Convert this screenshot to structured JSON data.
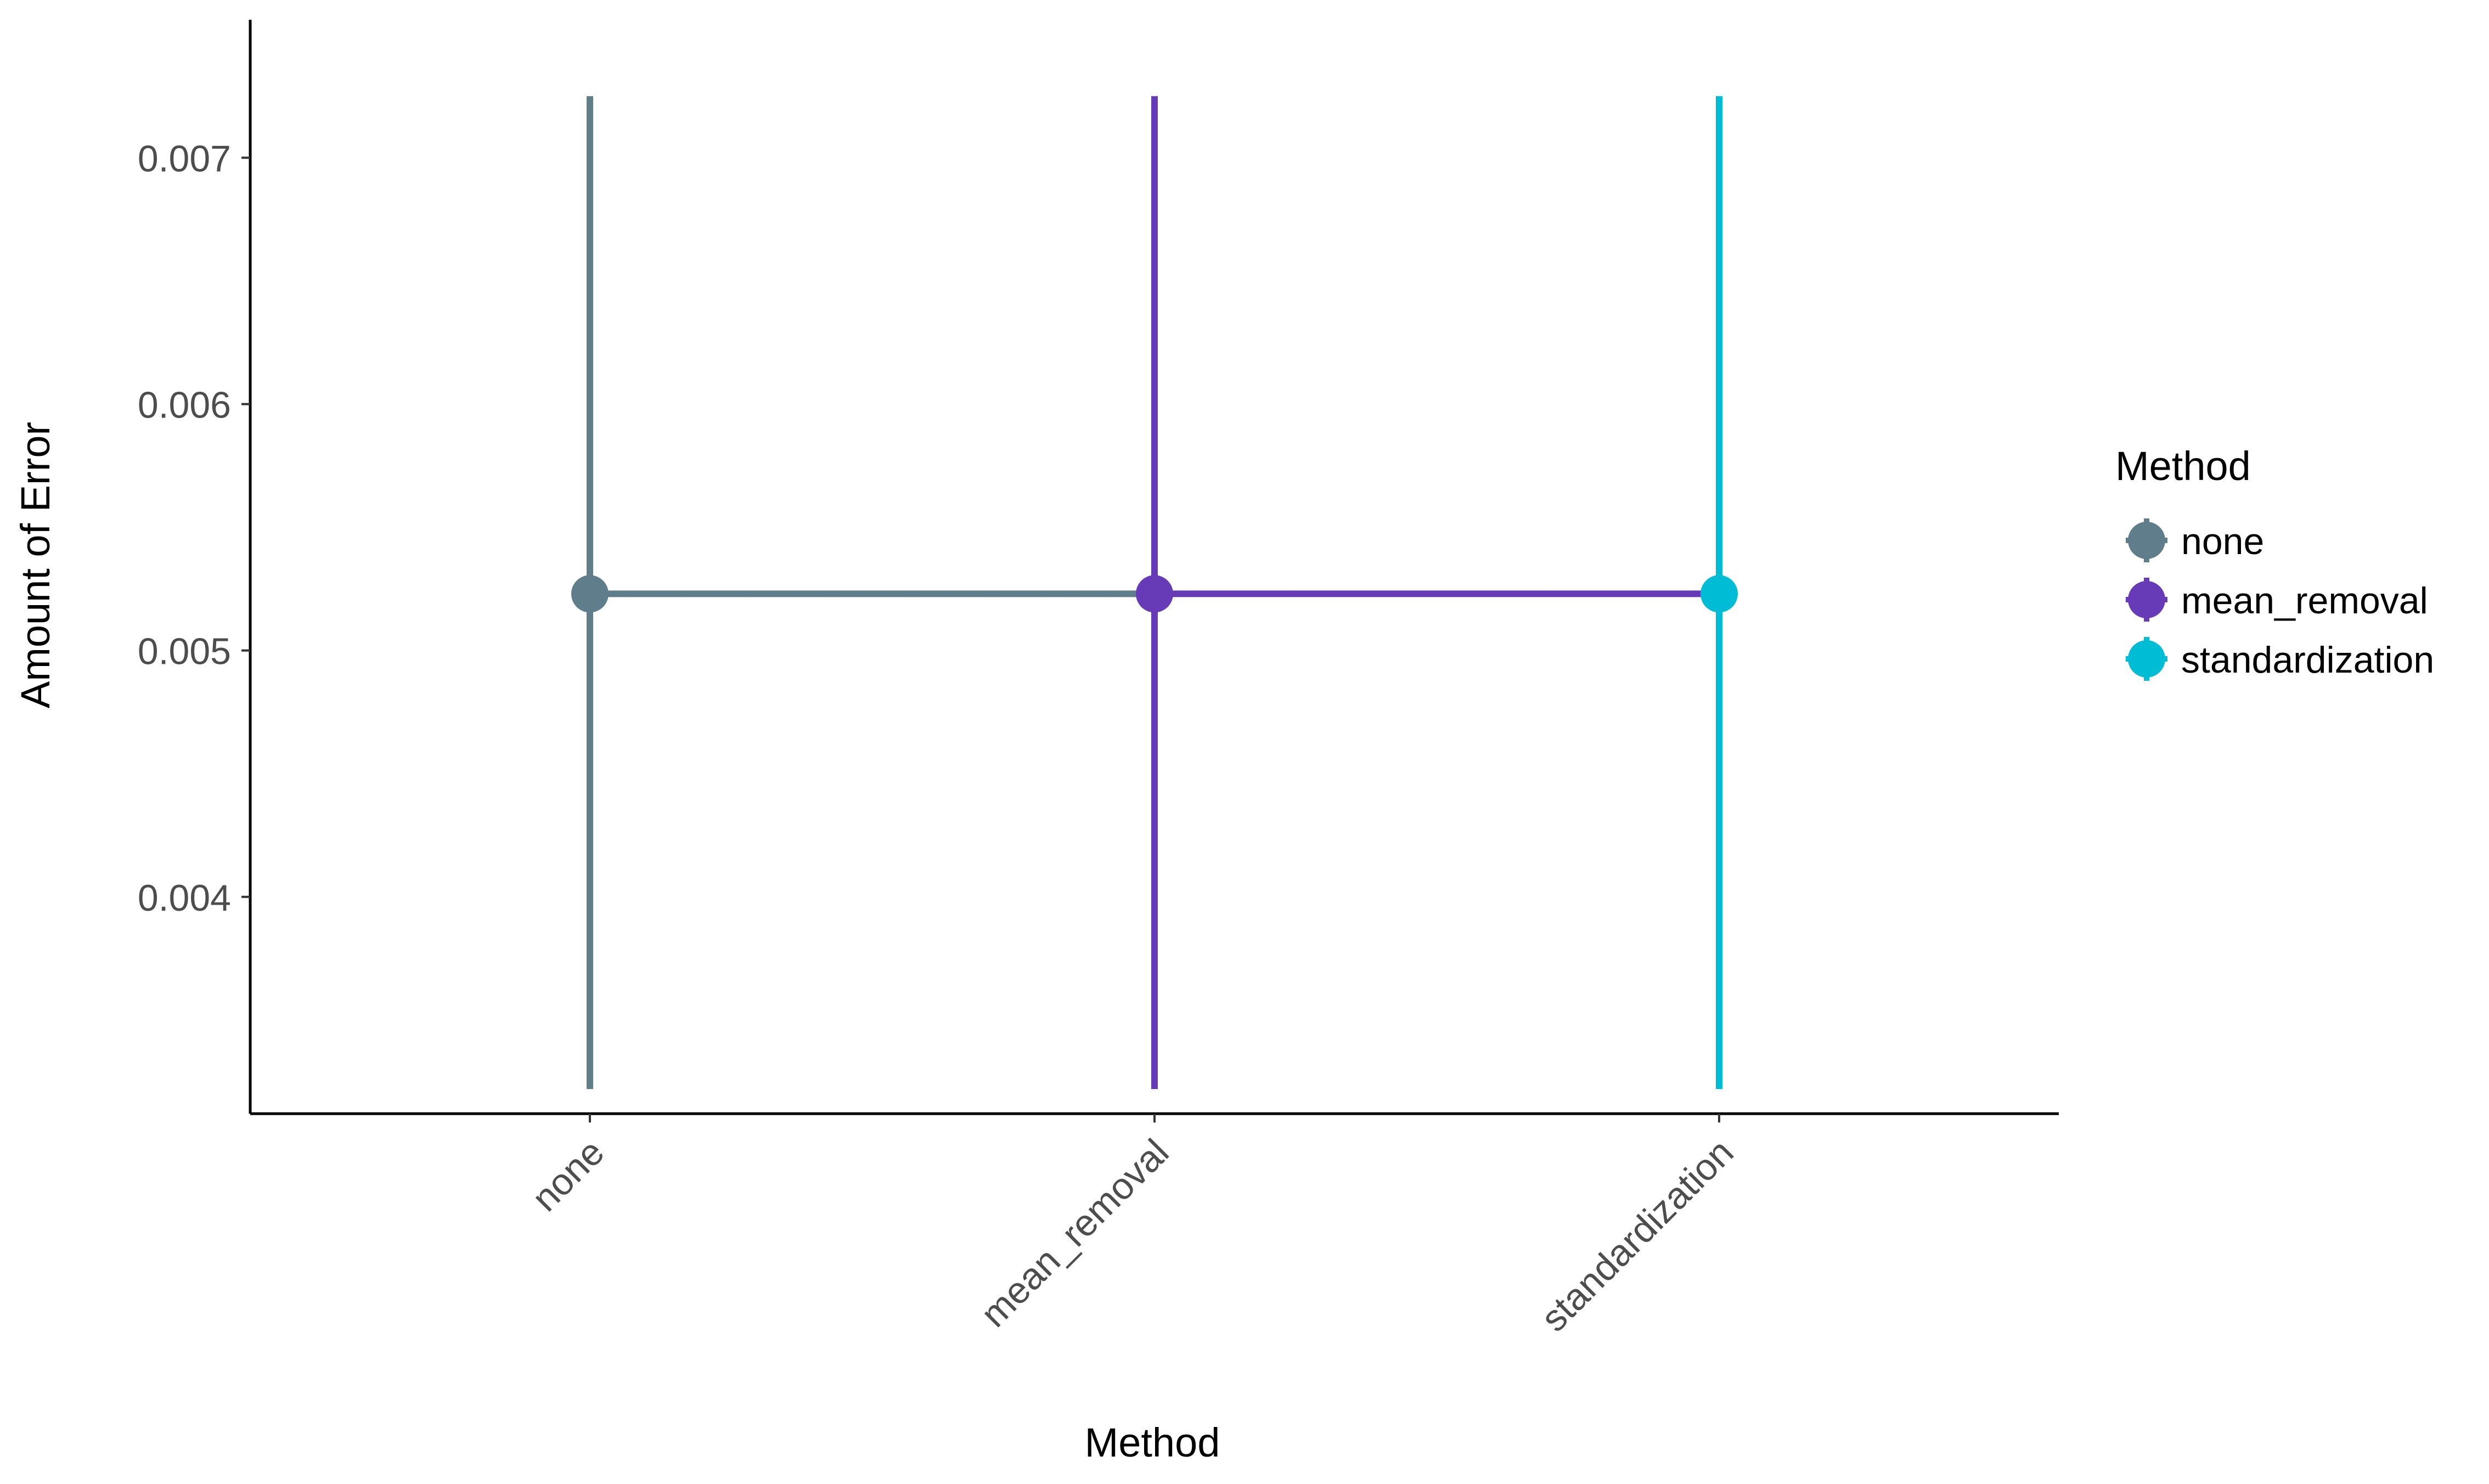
{
  "chart_data": {
    "type": "line",
    "title": "",
    "xlabel": "Method",
    "ylabel": "Amount of Error",
    "categories": [
      "none",
      "mean_removal",
      "standardization"
    ],
    "series": [
      {
        "values": [
          0.00523,
          0.00523,
          0.00523
        ],
        "error_low": [
          0.00322,
          0.00322,
          0.00322
        ],
        "error_high": [
          0.00725,
          0.00725,
          0.00725
        ],
        "colors": [
          "#607D8B",
          "#673AB7",
          "#00BCD4"
        ]
      }
    ],
    "ylim": [
      0.00312,
      0.00756
    ],
    "yticks": [
      {
        "value": 0.004,
        "label": "0.004"
      },
      {
        "value": 0.005,
        "label": "0.005"
      },
      {
        "value": 0.006,
        "label": "0.006"
      },
      {
        "value": 0.007,
        "label": "0.007"
      }
    ],
    "grid": false,
    "legend": {
      "title": "Method",
      "placement": "right",
      "entries": [
        {
          "label": "none",
          "color": "#607D8B"
        },
        {
          "label": "mean_removal",
          "color": "#673AB7"
        },
        {
          "label": "standardization",
          "color": "#00BCD4"
        }
      ]
    }
  }
}
